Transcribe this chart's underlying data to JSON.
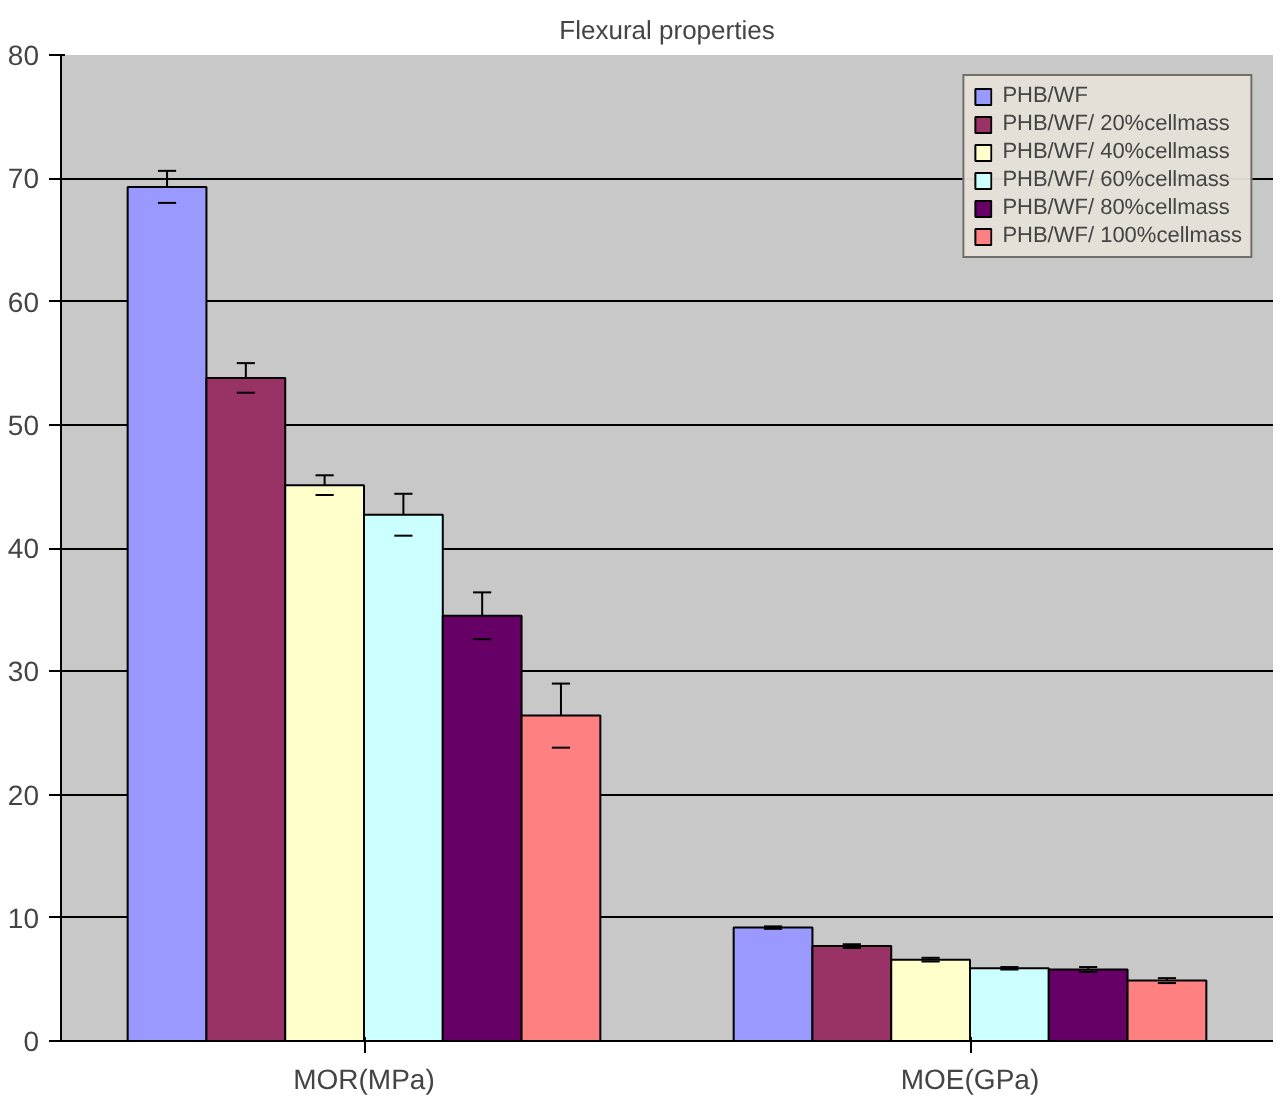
{
  "chart_data": {
    "type": "bar",
    "title": "Flexural properties",
    "categories": [
      "MOR(MPa)",
      "MOE(GPa)"
    ],
    "series": [
      {
        "name": "PHB/WF",
        "color": "#9999ff",
        "values": [
          69.3,
          9.2
        ],
        "errors": [
          1.3,
          0.1
        ]
      },
      {
        "name": "PHB/WF/ 20%cellmass",
        "color": "#993366",
        "values": [
          53.8,
          7.7
        ],
        "errors": [
          1.2,
          0.15
        ]
      },
      {
        "name": "PHB/WF/ 40%cellmass",
        "color": "#ffffcc",
        "values": [
          45.1,
          6.6
        ],
        "errors": [
          0.8,
          0.15
        ]
      },
      {
        "name": "PHB/WF/ 60%cellmass",
        "color": "#ccffff",
        "values": [
          42.7,
          5.9
        ],
        "errors": [
          1.7,
          0.1
        ]
      },
      {
        "name": "PHB/WF/ 80%cellmass",
        "color": "#660066",
        "values": [
          34.5,
          5.8
        ],
        "errors": [
          1.9,
          0.2
        ]
      },
      {
        "name": "PHB/WF/ 100%cellmass",
        "color": "#ff8080",
        "values": [
          26.4,
          4.9
        ],
        "errors": [
          2.6,
          0.2
        ]
      }
    ],
    "ylim": [
      0,
      80
    ],
    "yticks": [
      0,
      10,
      20,
      30,
      40,
      50,
      60,
      70,
      80
    ],
    "grid": "y",
    "legend": "top right"
  }
}
